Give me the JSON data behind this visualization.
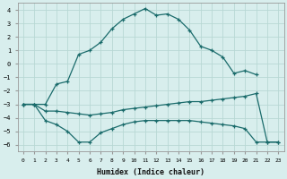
{
  "xlabel": "Humidex (Indice chaleur)",
  "xlim": [
    -0.5,
    23.5
  ],
  "ylim": [
    -6.5,
    4.5
  ],
  "xticks": [
    0,
    1,
    2,
    3,
    4,
    5,
    6,
    7,
    8,
    9,
    10,
    11,
    12,
    13,
    14,
    15,
    16,
    17,
    18,
    19,
    20,
    21,
    22,
    23
  ],
  "yticks": [
    -6,
    -5,
    -4,
    -3,
    -2,
    -1,
    0,
    1,
    2,
    3,
    4
  ],
  "bg_color": "#d8eeed",
  "line_color": "#1a6b6b",
  "grid_color": "#b8d8d4",
  "line_max_x": [
    0,
    1,
    2,
    3,
    4,
    5,
    6,
    7,
    8,
    9,
    10,
    11,
    12,
    13,
    14,
    15,
    16,
    17,
    18,
    19,
    20,
    21
  ],
  "line_max_y": [
    -3,
    -3,
    -3,
    -1.5,
    -1.3,
    0.7,
    1.0,
    1.6,
    2.6,
    3.3,
    3.7,
    4.1,
    3.6,
    3.7,
    3.3,
    2.5,
    1.3,
    1.0,
    0.5,
    -0.7,
    -0.5,
    -0.8
  ],
  "line_min_x": [
    0,
    1,
    2,
    3,
    4,
    5,
    6,
    7,
    8,
    9,
    10,
    11,
    12,
    13,
    14,
    15,
    16,
    17,
    18,
    19,
    20,
    21,
    22,
    23
  ],
  "line_min_y": [
    -3,
    -3,
    -4.2,
    -4.5,
    -5.0,
    -5.8,
    -5.8,
    -5.1,
    -4.8,
    -4.5,
    -4.3,
    -4.2,
    -4.2,
    -4.2,
    -4.2,
    -4.2,
    -4.3,
    -4.4,
    -4.5,
    -4.6,
    -4.8,
    -5.8,
    -5.8,
    -5.8
  ],
  "line_avg_x": [
    0,
    1,
    2,
    3,
    4,
    5,
    6,
    7,
    8,
    9,
    10,
    11,
    12,
    13,
    14,
    15,
    16,
    17,
    18,
    19,
    20,
    21,
    22,
    23
  ],
  "line_avg_y": [
    -3,
    -3,
    -3.5,
    -3.5,
    -3.6,
    -3.7,
    -3.8,
    -3.7,
    -3.6,
    -3.4,
    -3.3,
    -3.2,
    -3.1,
    -3.0,
    -2.9,
    -2.8,
    -2.8,
    -2.7,
    -2.6,
    -2.5,
    -2.4,
    -2.2,
    -5.8,
    -5.8
  ]
}
